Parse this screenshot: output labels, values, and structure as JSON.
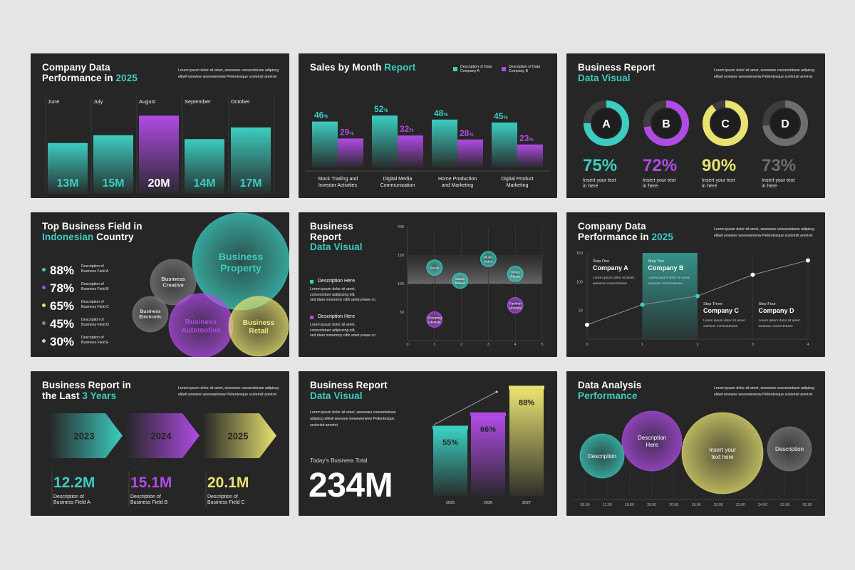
{
  "colors": {
    "teal": "#3ccdc0",
    "purple": "#b04be6",
    "yellow": "#e8e271",
    "gray": "#8a8a8a",
    "panel": "#262626",
    "page": "#e5e5e5"
  },
  "lorem2": "Lorem ipsum dolor sit amet, woewoeo consectetuwe adipiscg elitwil woewoe woewwerwnw Pellentesque scelerisit ametrei",
  "s1": {
    "title_a": "Company Data",
    "title_b": "Performance in ",
    "title_year": "2025",
    "lorem": "Lorem ipsum dolor sit amet, woewoeo consectetuwe adipiscg elitwil woewoe woewwerwnw Pellentesque scelerisit ametrei",
    "chart_data": {
      "type": "bar",
      "categories": [
        "June",
        "July",
        "August",
        "September",
        "October"
      ],
      "values": [
        13,
        15,
        20,
        14,
        17
      ],
      "labels": [
        "13M",
        "15M",
        "20M",
        "14M",
        "17M"
      ]
    }
  },
  "s2": {
    "title_a": "Sales by Month ",
    "title_b": "Report",
    "legend_a": [
      "Description of Data",
      "Company A"
    ],
    "legend_b": [
      "Description of Data",
      "Company B"
    ],
    "chart_data": {
      "type": "bar",
      "categories": [
        [
          "Stock Trading and",
          "Investor Activities"
        ],
        [
          "Digital Media",
          "Communication"
        ],
        [
          "Home Production",
          "and Marketing"
        ],
        [
          "Digital Product",
          "Marketing"
        ]
      ],
      "series": [
        {
          "values": [
            46,
            52,
            48,
            45
          ],
          "labels": [
            "46",
            "52",
            "48",
            "45"
          ]
        },
        {
          "values": [
            29,
            32,
            28,
            23
          ],
          "labels": [
            "29",
            "32",
            "28",
            "23"
          ]
        }
      ],
      "pct_sign": "%"
    }
  },
  "s3": {
    "title_a": "Business Report",
    "title_b": "Data Visual",
    "lorem": "Lorem ipsum dolor sit amet, woewoeo consectetuwe adipiscg elitwil woewoe woewwerwnw Pellentesque scelerisit ametrei",
    "chart_data": {
      "type": "pie",
      "items": [
        {
          "letter": "A",
          "value": 75,
          "label": "75%",
          "color": "#3ccdc0"
        },
        {
          "letter": "B",
          "value": 72,
          "label": "72%",
          "color": "#b04be6"
        },
        {
          "letter": "C",
          "value": 90,
          "label": "90%",
          "color": "#e8e271"
        },
        {
          "letter": "D",
          "value": 73,
          "label": "73%",
          "color": "#6e6e6e"
        }
      ],
      "caption": [
        "Insert your text",
        "in here"
      ]
    }
  },
  "s4": {
    "title_a": "Top Business Field in",
    "title_b": "Indonesian",
    "title_c": " Country",
    "stats": [
      {
        "value": "88%",
        "desc": [
          "Description of",
          "Business Field A"
        ],
        "color": "#3ccdc0"
      },
      {
        "value": "78%",
        "desc": [
          "Description of",
          "Business Field B"
        ],
        "color": "#b04be6"
      },
      {
        "value": "65%",
        "desc": [
          "Description of",
          "Business Field C"
        ],
        "color": "#e8e271"
      },
      {
        "value": "45%",
        "desc": [
          "Description of",
          "Business Field D"
        ],
        "color": "#8a8a8a"
      },
      {
        "value": "30%",
        "desc": [
          "Description of",
          "Business Field E"
        ],
        "color": "#cfcfcf"
      }
    ],
    "bubbles": [
      {
        "l1": "Business",
        "l2": "Property"
      },
      {
        "l1": "Business",
        "l2": "Creative"
      },
      {
        "l1": "Business",
        "l2": "Electronic"
      },
      {
        "l1": "Business",
        "l2": "Automotive"
      },
      {
        "l1": "Business",
        "l2": "Retail"
      }
    ]
  },
  "s5": {
    "title_a": "Business",
    "title_b": "Report",
    "title_c": "Data Visual",
    "desc_a": "Description Here",
    "desc_b": "Description Here",
    "lorem_short": [
      "Lorem ipsum dolor sit amet,",
      "consectetuer adipiscing elit,",
      "sed diam nonummy nibh amet,erewe co"
    ],
    "chart_data": {
      "type": "scatter",
      "xlim": [
        0,
        5
      ],
      "ylim": [
        0,
        200
      ],
      "xticks": [
        "0",
        "1",
        "2",
        "3",
        "4",
        "5"
      ],
      "yticks": [
        "50",
        "100",
        "150",
        "200"
      ],
      "points": [
        {
          "x": 1.0,
          "y": 128,
          "label": [
            "Social"
          ],
          "color": "#3ccdc0"
        },
        {
          "x": 1.95,
          "y": 105,
          "label": [
            "Game",
            "Online"
          ],
          "color": "#3ccdc0"
        },
        {
          "x": 3.0,
          "y": 143,
          "label": [
            "Music",
            "Video"
          ],
          "color": "#3ccdc0"
        },
        {
          "x": 4.0,
          "y": 117,
          "label": [
            "Video",
            "Player"
          ],
          "color": "#3ccdc0"
        },
        {
          "x": 1.0,
          "y": 37,
          "label": [
            "Shopping",
            "Lifestyle"
          ],
          "color": "#b04be6"
        },
        {
          "x": 4.0,
          "y": 62,
          "label": [
            "Fashion",
            "Lifestyle"
          ],
          "color": "#b04be6"
        }
      ]
    }
  },
  "s6": {
    "title_a": "Company Data",
    "title_b": "Performance in ",
    "title_year": "2025",
    "lorem": "Lorem ipsum dolor sit amet, woewoeo consectetuwe adipiscg elitwil woewoe woewwerwnw Pellentesque scelerisit ametrei",
    "steps": [
      {
        "step": "Step One",
        "name": "Company A"
      },
      {
        "step": "Step Two",
        "name": "Company B"
      },
      {
        "step": "Step Three",
        "name": "Company C"
      },
      {
        "step": "Step Four",
        "name": "Company D"
      }
    ],
    "step_lorem": [
      "Lorem ipsum dolor sit amet,",
      "woewoe consectetuwe"
    ],
    "chart_data": {
      "type": "line",
      "x": [
        0,
        1,
        2,
        3,
        4
      ],
      "y": [
        25,
        60,
        75,
        112,
        137
      ],
      "xlim": [
        0,
        4
      ],
      "ylim": [
        0,
        150
      ],
      "xticks": [
        "0",
        "1",
        "2",
        "3",
        "4"
      ],
      "yticks": [
        "50",
        "100",
        "150"
      ]
    }
  },
  "s7": {
    "title_a": "Business Report in",
    "title_b": "the Last ",
    "title_c": "3 Years",
    "lorem": "Lorem ipsum dolor sit amet, woewoeo consectetuwe adipiscg elitwil woewoe woewwerwnw Pellentesque scelerisit ametrei",
    "years": [
      "2023",
      "2024",
      "2025"
    ],
    "values": [
      {
        "v": "12.2M",
        "desc": [
          "Description of",
          "Business Field A"
        ],
        "color": "#3ccdc0"
      },
      {
        "v": "15.1M",
        "desc": [
          "Description of",
          "Business Field B"
        ],
        "color": "#b04be6"
      },
      {
        "v": "20.1M",
        "desc": [
          "Description of",
          "Business Field C"
        ],
        "color": "#e8e271"
      }
    ]
  },
  "s8": {
    "title_a": "Business Report",
    "title_b": "Data Visual",
    "lorem": [
      "Lorem ipsum dolor sit amet, woewoeo consectetuwe",
      "adipiscg elitwil woewoe woewwerwnw Pellentesque",
      "scelerisit ametrei"
    ],
    "total_label": "Today's Business Total",
    "total": "234M",
    "chart_data": {
      "type": "bar",
      "categories": [
        "2025",
        "2026",
        "2027"
      ],
      "values": [
        55,
        66,
        88
      ],
      "labels": [
        "55%",
        "66%",
        "88%"
      ]
    }
  },
  "s9": {
    "title_a": "Data Analysis",
    "title_b": "Performance",
    "lorem": "Lorem ipsum dolor sit amet, woewoeo consectetuwe adipiscg elitwil woewoe woewwerwnw Pellentesque scelerisit ametrei",
    "bubbles": [
      {
        "label": [
          "Description"
        ]
      },
      {
        "label": [
          "Description",
          "Here"
        ]
      },
      {
        "label": [
          "Insert your",
          "text here"
        ]
      },
      {
        "label": [
          "Description"
        ]
      }
    ],
    "ticks": [
      "05.00",
      "12.00",
      "18.00",
      "20.00",
      "20.00",
      "18.00",
      "20.00",
      "22.00",
      "24.00",
      "02.00",
      "02.00"
    ]
  }
}
